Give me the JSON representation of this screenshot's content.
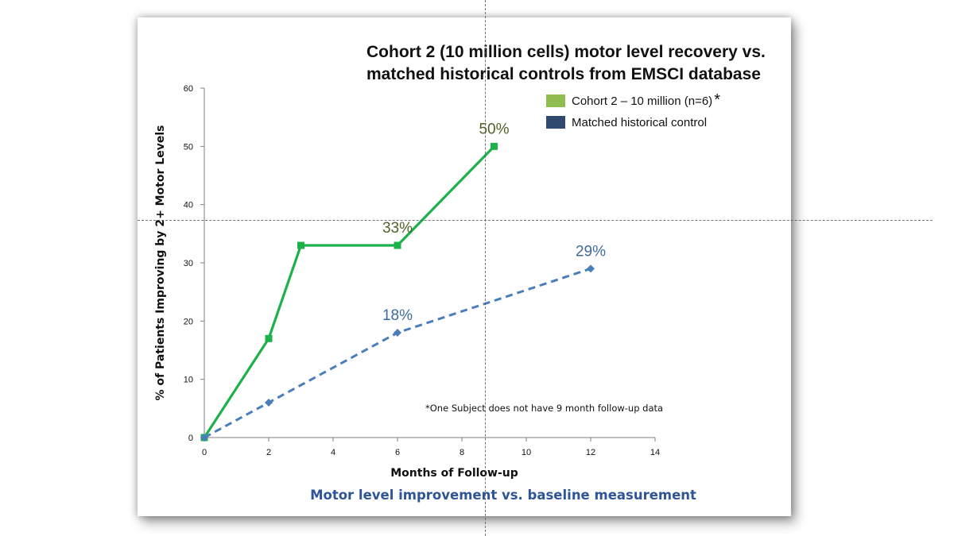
{
  "chart_data": {
    "type": "line",
    "title_lines": [
      "Cohort 2 (10 million cells) motor level recovery vs.",
      "matched historical controls from EMSCI database"
    ],
    "xlabel": "Months of Follow-up",
    "ylabel": "% of Patients Improving by 2+ Motor Levels",
    "xlim": [
      0,
      14
    ],
    "ylim": [
      0,
      60
    ],
    "xticks": [
      0,
      2,
      4,
      6,
      8,
      10,
      12,
      14
    ],
    "yticks": [
      0,
      10,
      20,
      30,
      40,
      50,
      60
    ],
    "grid": false,
    "legend_position": "top-right",
    "series": [
      {
        "name": "Cohort 2 – 10 million (n=6)",
        "legend_suffix": "*",
        "color": "#1db14b",
        "legend_color": "#8fbd4f",
        "label_color": "#4f6228",
        "line_style": "solid",
        "marker": "square",
        "points": [
          {
            "x": 0,
            "y": 0
          },
          {
            "x": 2,
            "y": 17
          },
          {
            "x": 3,
            "y": 33
          },
          {
            "x": 6,
            "y": 33,
            "label": "33%"
          },
          {
            "x": 9,
            "y": 50,
            "label": "50%"
          }
        ]
      },
      {
        "name": "Matched historical control",
        "legend_suffix": "",
        "color": "#4a7ebb",
        "legend_color": "#2f4a6e",
        "label_color": "#3f6aa0",
        "line_style": "dashed",
        "marker": "diamond",
        "points": [
          {
            "x": 0,
            "y": 0
          },
          {
            "x": 2,
            "y": 6
          },
          {
            "x": 6,
            "y": 18,
            "label": "18%"
          },
          {
            "x": 12,
            "y": 29,
            "label": "29%"
          }
        ]
      }
    ],
    "annotations": [
      "*One Subject does not have 9 month follow-up data"
    ]
  },
  "caption": "Motor level improvement vs. baseline measurement",
  "caption_color": "#2e5597"
}
